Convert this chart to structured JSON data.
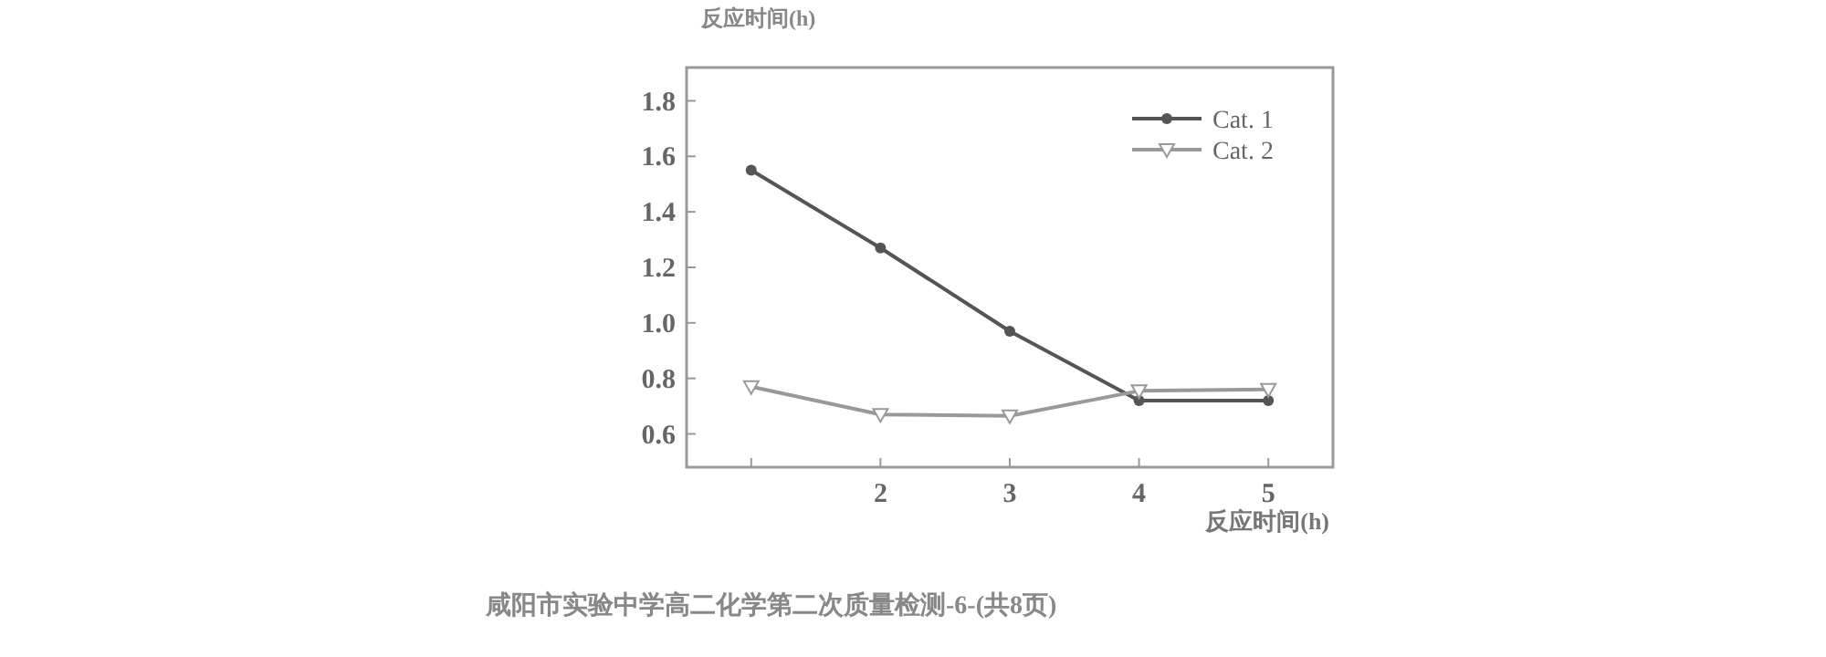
{
  "chart_data": {
    "type": "line",
    "xlabel": "反应时间(h)",
    "x": [
      1,
      2,
      3,
      4,
      5
    ],
    "series": [
      {
        "name": "Cat. 1",
        "color": "#555555",
        "marker": "circle",
        "values": [
          1.55,
          1.27,
          0.97,
          0.72,
          0.72
        ]
      },
      {
        "name": "Cat. 2",
        "color": "#999999",
        "marker": "triangle",
        "values": [
          0.77,
          0.67,
          0.665,
          0.755,
          0.76
        ]
      }
    ],
    "xlim": [
      0.5,
      5.5
    ],
    "xticks": [
      {
        "value": 1,
        "label": null
      },
      2,
      3,
      4,
      5
    ],
    "ylim": [
      0.48,
      1.92
    ],
    "yticks": [
      {
        "value": 0.6,
        "label": "0.6"
      },
      {
        "value": 0.8,
        "label": "0.8"
      },
      {
        "value": 1,
        "label": "1.0"
      },
      {
        "value": 1.2,
        "label": "1.2"
      },
      {
        "value": 1.4,
        "label": "1.4"
      },
      {
        "value": 1.6,
        "label": "1.6"
      },
      {
        "value": 1.8,
        "label": "1.8"
      }
    ],
    "legend": "top right",
    "grid": false,
    "annotations": [
      "反应时间(h)",
      "咸阳市实验中学高二化学第二次质量检测-6-(共8页)"
    ]
  }
}
